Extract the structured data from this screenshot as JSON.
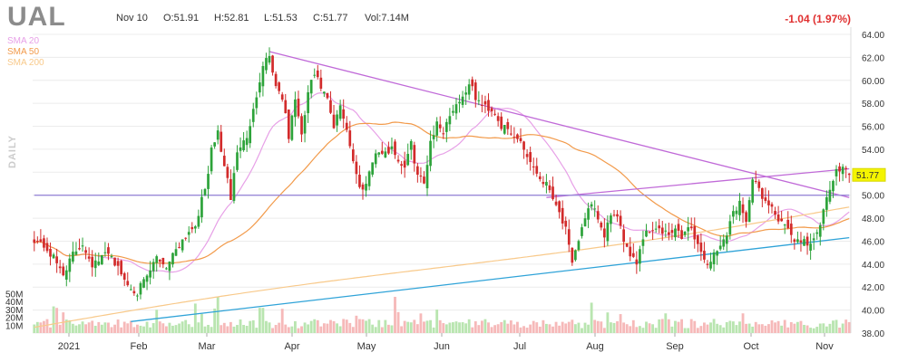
{
  "header": {
    "ticker": "UAL",
    "date": "Nov 10",
    "open": "O:51.91",
    "high": "H:52.81",
    "low": "L:51.53",
    "close": "C:51.77",
    "volume": "Vol:7.14M",
    "change": "-1.04 (1.97%)",
    "change_color": "#e03030"
  },
  "legend": [
    {
      "label": "SMA 20",
      "color": "#e7a0e7"
    },
    {
      "label": "SMA 50",
      "color": "#f29a4a"
    },
    {
      "label": "SMA 200",
      "color": "#f8c98a"
    }
  ],
  "timeframe_label": "DAILY",
  "last_price_tag": "51.77",
  "chart_data": {
    "type": "candlestick",
    "title": "UAL",
    "y_axis": {
      "ylim": [
        38,
        64
      ],
      "ticks": [
        "64.00",
        "62.00",
        "60.00",
        "58.00",
        "56.00",
        "54.00",
        "52.00",
        "50.00",
        "48.00",
        "46.00",
        "44.00",
        "42.00",
        "40.00",
        "38.00"
      ],
      "tick_values": [
        64,
        62,
        60,
        58,
        56,
        54,
        52,
        50,
        48,
        46,
        44,
        42,
        40,
        38
      ]
    },
    "x_axis": {
      "labels": [
        "2021",
        "Feb",
        "Mar",
        "Apr",
        "May",
        "Jun",
        "Jul",
        "Aug",
        "Sep",
        "Oct",
        "Nov"
      ]
    },
    "volume_axis": {
      "ticks": [
        "50M",
        "40M",
        "30M",
        "20M",
        "10M"
      ],
      "tick_values": [
        50,
        40,
        30,
        20,
        10
      ]
    },
    "price_waypoints": [
      [
        0,
        46.2
      ],
      [
        3,
        45.6
      ],
      [
        6,
        44.5
      ],
      [
        9,
        43.2
      ],
      [
        12,
        44.8
      ],
      [
        15,
        45.8
      ],
      [
        18,
        44.0
      ],
      [
        20,
        44.2
      ],
      [
        23,
        45.2
      ],
      [
        26,
        43.6
      ],
      [
        29,
        42.2
      ],
      [
        32,
        41.6
      ],
      [
        35,
        42.8
      ],
      [
        38,
        44.6
      ],
      [
        41,
        43.8
      ],
      [
        44,
        45.4
      ],
      [
        47,
        46.5
      ],
      [
        50,
        47.5
      ],
      [
        53,
        50.5
      ],
      [
        55,
        53.8
      ],
      [
        57,
        55.5
      ],
      [
        59,
        52.5
      ],
      [
        61,
        49.8
      ],
      [
        63,
        53.8
      ],
      [
        65,
        54.6
      ],
      [
        67,
        55.8
      ],
      [
        69,
        58.8
      ],
      [
        71,
        61.5
      ],
      [
        73,
        62.2
      ],
      [
        75,
        59.5
      ],
      [
        77,
        58.6
      ],
      [
        79,
        55.0
      ],
      [
        81,
        58.5
      ],
      [
        83,
        55.0
      ],
      [
        85,
        59.0
      ],
      [
        87,
        60.5
      ],
      [
        89,
        59.4
      ],
      [
        91,
        58.2
      ],
      [
        93,
        55.8
      ],
      [
        95,
        57.8
      ],
      [
        97,
        55.8
      ],
      [
        99,
        53.0
      ],
      [
        101,
        50.6
      ],
      [
        103,
        51.0
      ],
      [
        105,
        53.2
      ],
      [
        107,
        53.8
      ],
      [
        109,
        53.5
      ],
      [
        111,
        54.3
      ],
      [
        113,
        53.0
      ],
      [
        115,
        52.5
      ],
      [
        117,
        54.4
      ],
      [
        119,
        51.8
      ],
      [
        121,
        51.0
      ],
      [
        123,
        54.8
      ],
      [
        125,
        56.2
      ],
      [
        127,
        55.6
      ],
      [
        129,
        57.0
      ],
      [
        131,
        58.0
      ],
      [
        133,
        58.5
      ],
      [
        135,
        59.8
      ],
      [
        137,
        58.5
      ],
      [
        139,
        57.8
      ],
      [
        141,
        57.6
      ],
      [
        143,
        57.2
      ],
      [
        145,
        56.0
      ],
      [
        147,
        55.6
      ],
      [
        149,
        55.0
      ],
      [
        151,
        54.8
      ],
      [
        153,
        53.4
      ],
      [
        155,
        52.5
      ],
      [
        157,
        51.5
      ],
      [
        159,
        51.0
      ],
      [
        161,
        50.0
      ],
      [
        163,
        48.5
      ],
      [
        165,
        47.0
      ],
      [
        167,
        43.8
      ],
      [
        169,
        46.2
      ],
      [
        171,
        48.2
      ],
      [
        173,
        49.0
      ],
      [
        175,
        48.0
      ],
      [
        177,
        46.2
      ],
      [
        179,
        48.5
      ],
      [
        181,
        47.8
      ],
      [
        183,
        46.2
      ],
      [
        185,
        45.0
      ],
      [
        187,
        44.2
      ],
      [
        189,
        46.4
      ],
      [
        191,
        47.0
      ],
      [
        193,
        47.2
      ],
      [
        195,
        46.7
      ],
      [
        197,
        46.5
      ],
      [
        199,
        47.0
      ],
      [
        201,
        46.2
      ],
      [
        203,
        47.5
      ],
      [
        205,
        46.4
      ],
      [
        207,
        45.0
      ],
      [
        209,
        44.0
      ],
      [
        211,
        44.8
      ],
      [
        213,
        45.5
      ],
      [
        215,
        46.8
      ],
      [
        217,
        48.5
      ],
      [
        219,
        49.3
      ],
      [
        221,
        48.0
      ],
      [
        223,
        51.2
      ],
      [
        225,
        50.6
      ],
      [
        227,
        49.4
      ],
      [
        229,
        49.0
      ],
      [
        231,
        47.8
      ],
      [
        233,
        47.2
      ],
      [
        235,
        46.5
      ],
      [
        237,
        46.0
      ],
      [
        239,
        46.1
      ],
      [
        241,
        45.8
      ],
      [
        243,
        46.5
      ],
      [
        245,
        48.5
      ],
      [
        247,
        50.5
      ],
      [
        249,
        52.0
      ],
      [
        251,
        52.8
      ],
      [
        253,
        51.77
      ]
    ],
    "trendlines": [
      {
        "name": "resistance",
        "color": "#c06ad8",
        "from": [
          73,
          62.5
        ],
        "to": [
          253,
          49.8
        ]
      },
      {
        "name": "rising-wedge",
        "color": "#c06ad8",
        "from": [
          159,
          49.8
        ],
        "to": [
          253,
          52.3
        ]
      },
      {
        "name": "support",
        "color": "#2fa3d8",
        "from": [
          30,
          39.0
        ],
        "to": [
          253,
          46.3
        ]
      },
      {
        "name": "horizontal",
        "color": "#9a8ad8",
        "from": [
          0,
          50.0
        ],
        "to": [
          253,
          50.0
        ]
      }
    ]
  }
}
